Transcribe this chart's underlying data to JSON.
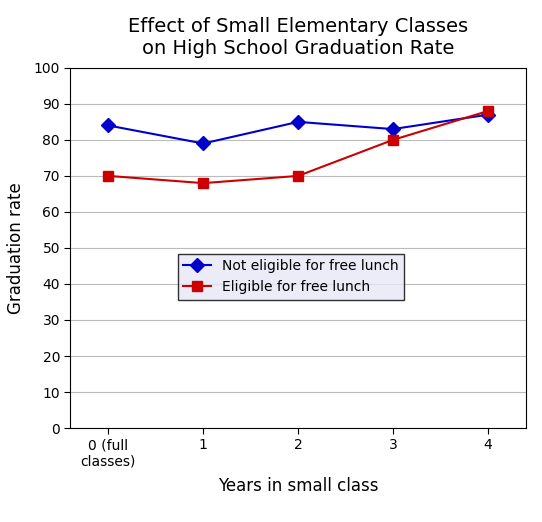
{
  "title": "Effect of Small Elementary Classes\non High School Graduation Rate",
  "xlabel": "Years in small class",
  "ylabel": "Graduation rate",
  "x_values": [
    0,
    1,
    2,
    3,
    4
  ],
  "x_ticklabels": [
    "0 (full\nclasses)",
    "1",
    "2",
    "3",
    "4"
  ],
  "blue_values": [
    84,
    79,
    85,
    83,
    87
  ],
  "red_values": [
    70,
    68,
    70,
    80,
    88
  ],
  "blue_color": "#0000CC",
  "red_color": "#CC0000",
  "legend_label_blue": "Not eligible for free lunch",
  "legend_label_red": "Eligible for free lunch",
  "ylim": [
    0,
    100
  ],
  "yticks": [
    0,
    10,
    20,
    30,
    40,
    50,
    60,
    70,
    80,
    90,
    100
  ],
  "title_fontsize": 14,
  "label_fontsize": 12,
  "tick_fontsize": 10,
  "legend_fontsize": 10,
  "bg_color": "#e8e8f8",
  "border_color": "#000000",
  "grid_color": "#bbbbbb",
  "fig_width": 5.42,
  "fig_height": 5.22,
  "dpi": 100
}
